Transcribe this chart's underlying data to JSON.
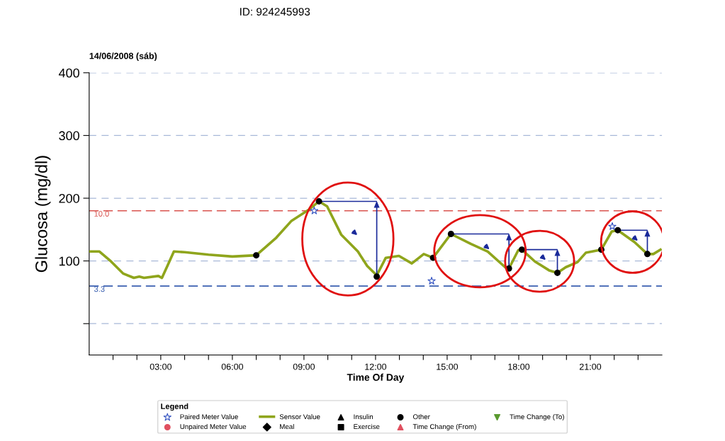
{
  "chart_data": {
    "type": "line",
    "title": "14/06/2008 (sáb)",
    "xlabel": "Time Of Day",
    "ylabel": "Glucosa (mg/dl)",
    "legend_title": "Legend",
    "annotations": [
      "ID: 924245993",
      {
        "text": "10.0",
        "x": 0.2,
        "y": 180
      },
      {
        "text": "3.3",
        "x": 0.2,
        "y": 60
      }
    ],
    "xlim": [
      0,
      24
    ],
    "ylim": [
      -50,
      400
    ],
    "xticks": [
      {
        "value": 1,
        "label": null
      },
      {
        "value": 2,
        "label": null
      },
      {
        "value": 3,
        "label": "03:00"
      },
      {
        "value": 4,
        "label": null
      },
      {
        "value": 5,
        "label": null
      },
      {
        "value": 6,
        "label": "06:00"
      },
      {
        "value": 7,
        "label": null
      },
      {
        "value": 8,
        "label": null
      },
      {
        "value": 9,
        "label": "09:00"
      },
      {
        "value": 10,
        "label": null
      },
      {
        "value": 11,
        "label": null
      },
      {
        "value": 12,
        "label": "12:00"
      },
      {
        "value": 13,
        "label": null
      },
      {
        "value": 14,
        "label": null
      },
      {
        "value": 15,
        "label": "15:00"
      },
      {
        "value": 16,
        "label": null
      },
      {
        "value": 17,
        "label": null
      },
      {
        "value": 18,
        "label": "18:00"
      },
      {
        "value": 19,
        "label": null
      },
      {
        "value": 20,
        "label": null
      },
      {
        "value": 21,
        "label": "21:00"
      },
      {
        "value": 22,
        "label": null
      },
      {
        "value": 23,
        "label": null
      }
    ],
    "yticks": [
      {
        "value": 0,
        "label": null
      },
      100,
      200,
      300,
      400
    ],
    "grid": "y",
    "legend": "bottom",
    "ref_lines": [
      {
        "axis": "y",
        "value": 180,
        "color": "#d9534f",
        "line_style": "dashed"
      },
      {
        "axis": "y",
        "value": 60,
        "color": "#3a5fb0",
        "line_style": "dashed"
      }
    ],
    "series": [
      {
        "name": "Paired Meter Value",
        "type": "scatter",
        "marker": "star",
        "color": "#3050c0",
        "x": [
          9.43,
          14.35,
          21.92
        ],
        "values": [
          180,
          68,
          155
        ]
      },
      {
        "name": "Unpaired Meter Value",
        "type": "scatter",
        "marker": "circle",
        "color": "#e05060"
      },
      {
        "name": "Sensor Value",
        "type": "line",
        "color": "#8fa51c",
        "line_style": "solid",
        "marker": "none",
        "x": [
          0,
          0.43,
          0.92,
          1.42,
          1.87,
          2.1,
          2.3,
          2.9,
          3.05,
          3.3,
          3.55,
          4.0,
          5.0,
          6.0,
          7.0,
          7.84,
          8.48,
          9.18,
          9.63,
          9.97,
          10.56,
          11.26,
          11.65,
          12.05,
          12.43,
          12.98,
          13.52,
          14.02,
          14.41,
          15.16,
          16.0,
          16.7,
          17.49,
          17.59,
          17.98,
          18.13,
          18.68,
          19.27,
          19.62,
          19.97,
          20.46,
          20.81,
          21.46,
          21.9,
          22.15,
          22.85,
          23.39,
          23.64,
          23.94
        ],
        "values": [
          115,
          115,
          99,
          80,
          73,
          75,
          73,
          76,
          73,
          94,
          115,
          114,
          110,
          107,
          109,
          137,
          164,
          181,
          195,
          187,
          142,
          115,
          92,
          77,
          105,
          108,
          96,
          111,
          105,
          143,
          127,
          115,
          88,
          88,
          117,
          118,
          99,
          85,
          81,
          90,
          98,
          113,
          118,
          147,
          149,
          130,
          111,
          111,
          118
        ]
      },
      {
        "name": "Meal",
        "type": "scatter",
        "marker": "diamond",
        "color": "#000000"
      },
      {
        "name": "Insulin",
        "type": "scatter",
        "marker": "triangle",
        "color": "#000000"
      },
      {
        "name": "Exercise",
        "type": "scatter",
        "marker": "square",
        "color": "#000000"
      },
      {
        "name": "Other",
        "type": "scatter",
        "marker": "circle",
        "color": "#000000",
        "x": [
          7.0,
          9.63,
          12.05,
          14.41,
          15.16,
          17.59,
          18.13,
          19.62,
          21.46,
          22.15,
          23.39
        ],
        "values": [
          109,
          195,
          75,
          105,
          143,
          88,
          118,
          81,
          118,
          149,
          111
        ]
      },
      {
        "name": "Time Change (From)",
        "type": "scatter",
        "marker": "triangle",
        "color": "#e05060"
      },
      {
        "name": "Time Change (To)",
        "type": "scatter",
        "marker": "triangle_down",
        "color": "#5a9a30"
      }
    ]
  }
}
